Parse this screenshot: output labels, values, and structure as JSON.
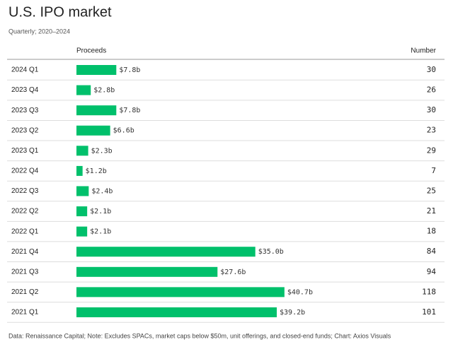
{
  "chart_data": {
    "type": "bar",
    "title": "U.S. IPO market",
    "subtitle": "Quarterly; 2020–2024",
    "columns": [
      "Proceeds",
      "Number"
    ],
    "categories": [
      "2024 Q1",
      "2023 Q4",
      "2023 Q3",
      "2023 Q2",
      "2023 Q1",
      "2022 Q4",
      "2022 Q3",
      "2022 Q2",
      "2022 Q1",
      "2021 Q4",
      "2021 Q3",
      "2021 Q2",
      "2021 Q1"
    ],
    "values": [
      7.8,
      2.8,
      7.8,
      6.6,
      2.3,
      1.2,
      2.4,
      2.1,
      2.1,
      35.0,
      27.6,
      40.7,
      39.2
    ],
    "value_labels": [
      "$7.8b",
      "$2.8b",
      "$7.8b",
      "$6.6b",
      "$2.3b",
      "$1.2b",
      "$2.4b",
      "$2.1b",
      "$2.1b",
      "$35.0b",
      "$27.6b",
      "$40.7b",
      "$39.2b"
    ],
    "numbers": [
      30,
      26,
      30,
      23,
      29,
      7,
      25,
      21,
      18,
      84,
      94,
      118,
      101
    ],
    "color": "#00c06b",
    "source": "Data: Renaissance Capital; Note: Excludes SPACs, market caps below $50m, unit offerings, and closed-end funds; Chart: Axios Visuals"
  }
}
